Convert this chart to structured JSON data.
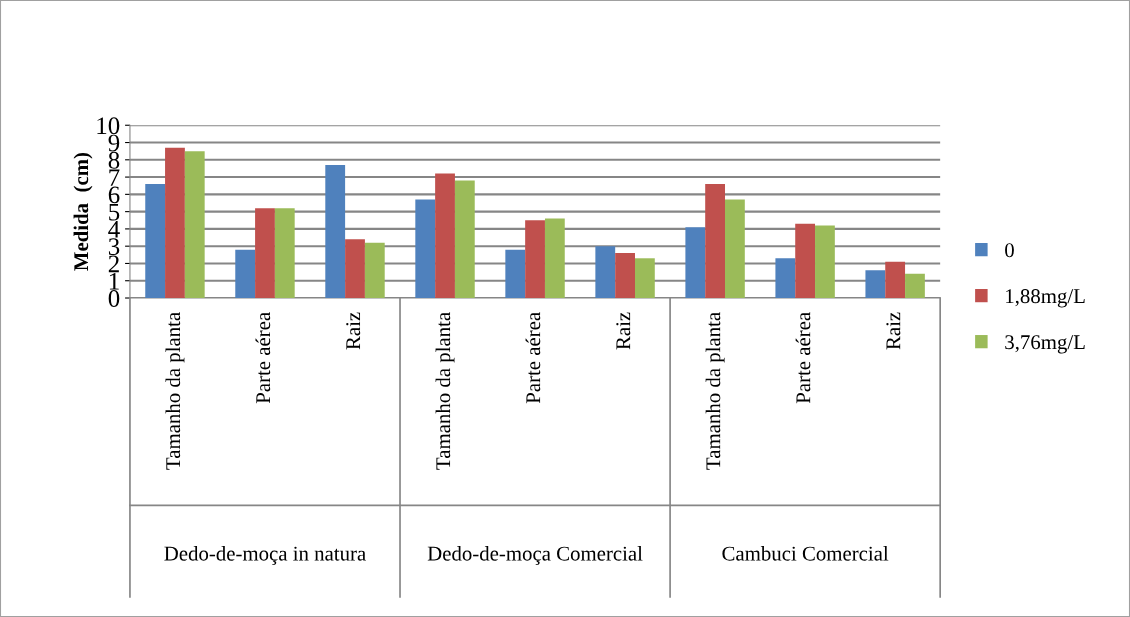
{
  "chart_data": {
    "type": "bar",
    "ylabel": "Medida  (cm)",
    "categories": [
      "Tamanho da planta",
      "Parte aérea",
      "Raiz",
      "Tamanho da planta",
      "Parte aérea",
      "Raiz",
      "Tamanho da planta",
      "Parte aérea",
      "Raiz"
    ],
    "series": [
      {
        "name": "0",
        "color": "#4f81bd",
        "values": [
          6.6,
          2.8,
          7.7,
          5.7,
          2.8,
          3.0,
          4.1,
          2.3,
          1.6
        ]
      },
      {
        "name": "1,88mg/L",
        "color": "#c0504d",
        "values": [
          8.7,
          5.2,
          3.4,
          7.2,
          4.5,
          2.6,
          6.6,
          4.3,
          2.1
        ]
      },
      {
        "name": "3,76mg/L",
        "color": "#9bbb59",
        "values": [
          8.5,
          5.2,
          3.2,
          6.8,
          4.6,
          2.3,
          5.7,
          4.2,
          1.4
        ]
      }
    ],
    "annotations": [
      "Dedo-de-moça in natura",
      "Dedo-de-moça Comercial",
      "Cambuci Comercial"
    ],
    "ylim": [
      0,
      10
    ],
    "yticks": [
      0,
      1,
      2,
      3,
      4,
      5,
      6,
      7,
      8,
      9,
      10
    ],
    "grid": "y",
    "legend": "right"
  }
}
